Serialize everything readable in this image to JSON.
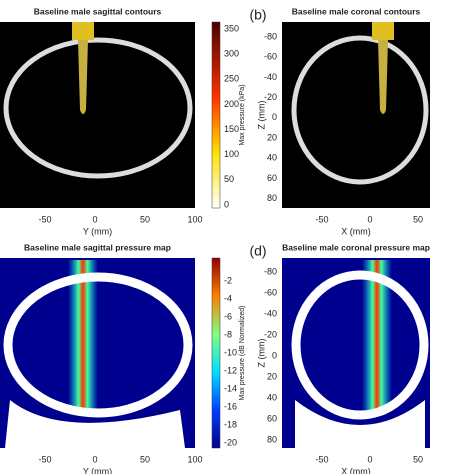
{
  "panels": [
    {
      "title": "Baseline male sagittal contours",
      "xlabel": "Y (mm)",
      "xticks": [
        -50,
        0,
        50,
        100
      ],
      "colorbar": {
        "label": "Max pressure (kPa)",
        "ticks": [
          350,
          300,
          250,
          200,
          150,
          100,
          50,
          0
        ]
      }
    },
    {
      "label": "(b)",
      "title": "Baseline male coronal contours",
      "xlabel": "X (mm)",
      "ylabel": "Z (mm)",
      "xticks": [
        -50,
        0,
        50
      ],
      "yticks": [
        -80,
        -60,
        -40,
        -20,
        0,
        20,
        40,
        60,
        80
      ]
    },
    {
      "title": "Baseline male sagittal pressure map",
      "xlabel": "Y (mm)",
      "xticks": [
        -50,
        0,
        50,
        100
      ],
      "colorbar": {
        "label": "Max pressure (dB Normalized)",
        "ticks": [
          -2,
          -4,
          -6,
          -8,
          -10,
          -12,
          -14,
          -16,
          -18,
          -20
        ]
      }
    },
    {
      "label": "(d)",
      "title": "Baseline male coronal pressure map",
      "xlabel": "X (mm)",
      "ylabel": "Z (mm)",
      "xticks": [
        -50,
        0,
        50
      ],
      "yticks": [
        -80,
        -60,
        -40,
        -20,
        0,
        20,
        40,
        60,
        80
      ]
    }
  ]
}
